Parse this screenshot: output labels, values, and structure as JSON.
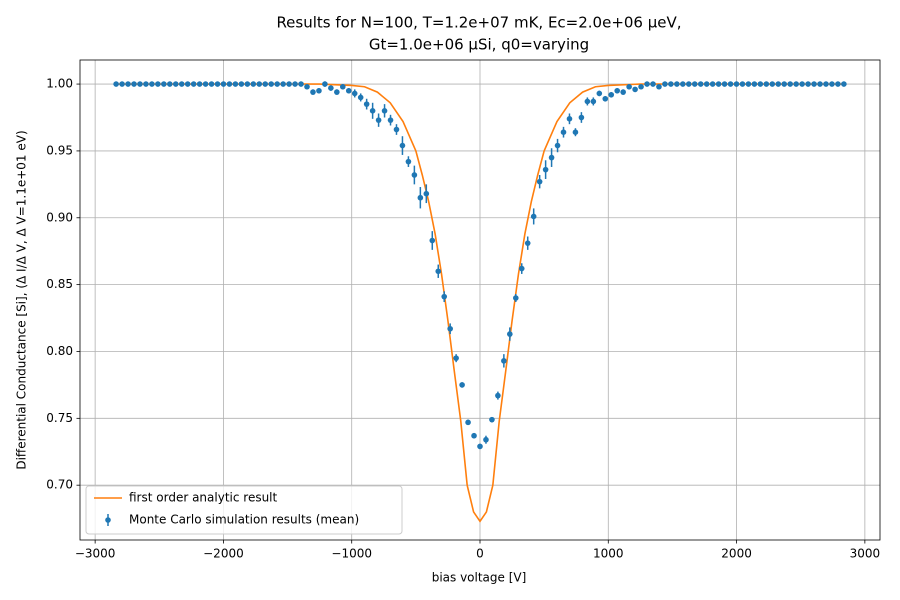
{
  "chart_data": {
    "type": "errorbar",
    "title": [
      "Results for N=100, T=1.2e+07 mK, Ec=2.0e+06 μeV,",
      "Gt=1.0e+06 μSi, q0=varying"
    ],
    "x_label": "bias voltage [V]",
    "y_label": "Differential Conductance [Si], (Δ I/Δ V, Δ V=1.1e+01 eV)",
    "xlim": [
      -3118,
      3118
    ],
    "ylim": [
      0.659,
      1.018
    ],
    "xticks": [
      {
        "value": -3000,
        "label": "−3000"
      },
      {
        "value": -2000,
        "label": "−2000"
      },
      {
        "value": -1000,
        "label": "−1000"
      },
      0,
      1000,
      2000,
      3000
    ],
    "yticks": [
      {
        "value": 0.7,
        "label": "0.70"
      },
      0.75,
      {
        "value": 0.8,
        "label": "0.80"
      },
      0.85,
      {
        "value": 0.9,
        "label": "0.90"
      },
      0.95,
      {
        "value": 1.0,
        "label": "1.00"
      }
    ],
    "grid": true,
    "legend": "lower left",
    "series": [
      {
        "name": "first order analytic result",
        "type": "line",
        "color": "#ff7f0e",
        "x": [
          -2835,
          -1250,
          -1000,
          -900,
          -800,
          -700,
          -600,
          -500,
          -450,
          -400,
          -350,
          -300,
          -250,
          -200,
          -150,
          -100,
          -50,
          0,
          50,
          100,
          150,
          200,
          250,
          300,
          350,
          400,
          450,
          500,
          600,
          700,
          800,
          900,
          1000,
          1250,
          2835
        ],
        "values": [
          1.0,
          1.0,
          0.999,
          0.998,
          0.994,
          0.986,
          0.972,
          0.95,
          0.932,
          0.912,
          0.888,
          0.858,
          0.823,
          0.785,
          0.748,
          0.7,
          0.68,
          0.673,
          0.68,
          0.7,
          0.748,
          0.785,
          0.823,
          0.858,
          0.888,
          0.912,
          0.932,
          0.95,
          0.972,
          0.986,
          0.994,
          0.998,
          0.999,
          1.0,
          1.0
        ]
      },
      {
        "name": "Monte Carlo simulation results (mean)",
        "type": "errorbar",
        "color": "#1f77b4",
        "x": [
          -2836.5,
          -2790,
          -2743.5,
          -2697,
          -2650.5,
          -2604,
          -2557.5,
          -2511,
          -2464.5,
          -2418,
          -2371.5,
          -2325,
          -2278.5,
          -2232,
          -2185.5,
          -2139,
          -2092.5,
          -2046,
          -1999.5,
          -1953,
          -1906.5,
          -1860,
          -1813.5,
          -1767,
          -1720.5,
          -1674,
          -1627.5,
          -1581,
          -1534.5,
          -1488,
          -1441.5,
          -1395,
          -1348.5,
          -1302,
          -1255.5,
          -1209,
          -1162.5,
          -1116,
          -1069.5,
          -1023,
          -976.5,
          -930,
          -883.5,
          -837,
          -790.5,
          -744,
          -697.5,
          -651,
          -604.5,
          -558,
          -511.5,
          -465,
          -418.5,
          -372,
          -325.5,
          -279,
          -232.5,
          -186,
          -139.5,
          -93,
          -46.5,
          0,
          46.5,
          93,
          139.5,
          186,
          232.5,
          279,
          325.5,
          372,
          418.5,
          465,
          511.5,
          558,
          604.5,
          651,
          697.5,
          744,
          790.5,
          837,
          883.5,
          930,
          976.5,
          1023,
          1069.5,
          1116,
          1162.5,
          1209,
          1255.5,
          1302,
          1348.5,
          1395,
          1441.5,
          1488,
          1534.5,
          1581,
          1627.5,
          1674,
          1720.5,
          1767,
          1813.5,
          1860,
          1906.5,
          1953,
          1999.5,
          2046,
          2092.5,
          2139,
          2185.5,
          2232,
          2278.5,
          2325,
          2371.5,
          2418,
          2464.5,
          2511,
          2557.5,
          2604,
          2650.5,
          2697,
          2743.5,
          2790,
          2836.5
        ],
        "values": [
          1.0,
          1.0,
          1.0,
          1.0,
          1.0,
          1.0,
          1.0,
          1.0,
          1.0,
          1.0,
          1.0,
          1.0,
          1.0,
          1.0,
          1.0,
          1.0,
          1.0,
          1.0,
          1.0,
          1.0,
          1.0,
          1.0,
          1.0,
          1.0,
          1.0,
          1.0,
          1.0,
          1.0,
          1.0,
          1.0,
          1.0,
          1.0,
          0.998,
          0.994,
          0.995,
          1.0,
          0.997,
          0.994,
          0.998,
          0.995,
          0.993,
          0.99,
          0.985,
          0.98,
          0.973,
          0.98,
          0.973,
          0.966,
          0.954,
          0.942,
          0.932,
          0.915,
          0.918,
          0.883,
          0.86,
          0.841,
          0.817,
          0.795,
          0.775,
          0.747,
          0.737,
          0.729,
          0.734,
          0.749,
          0.767,
          0.793,
          0.813,
          0.84,
          0.862,
          0.881,
          0.901,
          0.927,
          0.936,
          0.945,
          0.954,
          0.964,
          0.974,
          0.964,
          0.975,
          0.987,
          0.987,
          0.993,
          0.989,
          0.992,
          0.995,
          0.994,
          0.998,
          0.996,
          0.998,
          1.0,
          1.0,
          0.998,
          1.0,
          1.0,
          1.0,
          1.0,
          1.0,
          1.0,
          1.0,
          1.0,
          1.0,
          1.0,
          1.0,
          1.0,
          1.0,
          1.0,
          1.0,
          1.0,
          1.0,
          1.0,
          1.0,
          1.0,
          1.0,
          1.0,
          1.0,
          1.0,
          1.0,
          1.0,
          1.0,
          1.0,
          1.0,
          1.0,
          1.0
        ],
        "errors": [
          0.0005,
          0.0005,
          0.0005,
          0.0005,
          0.0005,
          0.0005,
          0.0005,
          0.0005,
          0.0005,
          0.0005,
          0.0005,
          0.0005,
          0.0005,
          0.0005,
          0.0005,
          0.0005,
          0.0005,
          0.0005,
          0.0005,
          0.0005,
          0.0005,
          0.0005,
          0.0005,
          0.0005,
          0.0005,
          0.0005,
          0.0005,
          0.0005,
          0.0005,
          0.0005,
          0.0005,
          0.001,
          0.001,
          0.002,
          0.002,
          0.002,
          0.002,
          0.002,
          0.002,
          0.002,
          0.003,
          0.003,
          0.004,
          0.006,
          0.005,
          0.005,
          0.004,
          0.004,
          0.007,
          0.004,
          0.007,
          0.008,
          0.007,
          0.007,
          0.005,
          0.004,
          0.004,
          0.003,
          0.002,
          0.002,
          0.002,
          0.002,
          0.003,
          0.002,
          0.003,
          0.005,
          0.005,
          0.003,
          0.004,
          0.005,
          0.006,
          0.005,
          0.007,
          0.007,
          0.005,
          0.004,
          0.004,
          0.003,
          0.004,
          0.003,
          0.003,
          0.002,
          0.002,
          0.002,
          0.002,
          0.002,
          0.002,
          0.001,
          0.001,
          0.001,
          0.001,
          0.001,
          0.0005,
          0.0005,
          0.0005,
          0.0005,
          0.0005,
          0.0005,
          0.0005,
          0.0005,
          0.0005,
          0.0005,
          0.0005,
          0.0005,
          0.0005,
          0.0005,
          0.0005,
          0.0005,
          0.0005,
          0.0005,
          0.0005,
          0.0005,
          0.0005,
          0.0005,
          0.0005,
          0.0005,
          0.0005,
          0.0005,
          0.0005,
          0.0005,
          0.0005,
          0.0005,
          0.0005
        ]
      }
    ]
  }
}
